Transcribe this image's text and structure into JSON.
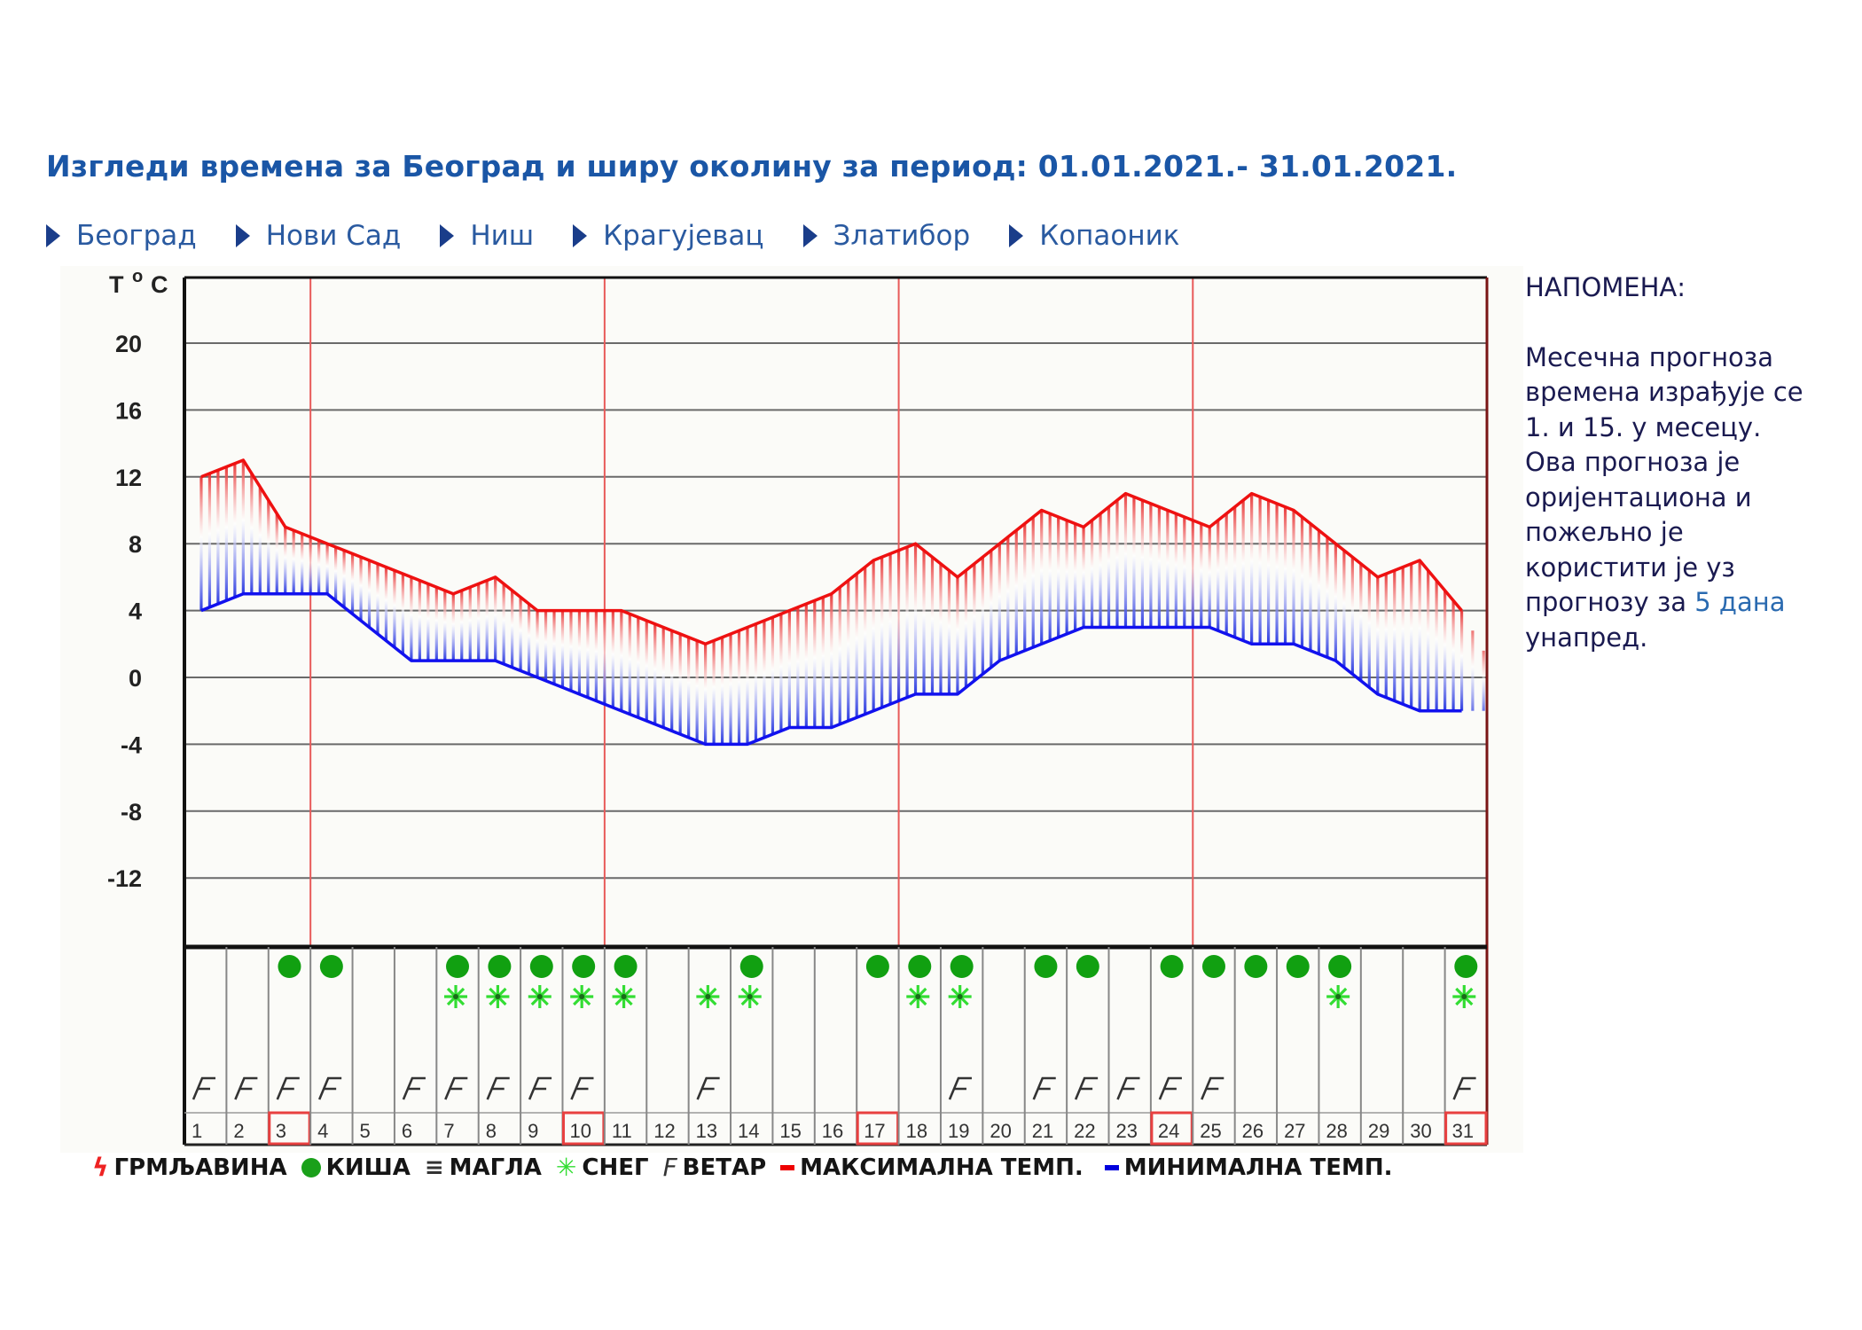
{
  "header": {
    "title": "Изгледи времена за Београд и ширу околину за период: 01.01.2021.- 31.01.2021."
  },
  "nav": {
    "items": [
      {
        "label": "Београд"
      },
      {
        "label": "Нови Сад"
      },
      {
        "label": "Ниш"
      },
      {
        "label": "Крагујевац"
      },
      {
        "label": "Златибор"
      },
      {
        "label": "Копаоник"
      }
    ]
  },
  "note": {
    "heading": "НАПОМЕНА:",
    "lines": [
      "Месечна прогноза",
      "времена израђује се",
      "1. и 15. у месецу.",
      "Ова прогноза је",
      "оријентациона и",
      "пожељно је",
      "користити је уз"
    ],
    "line_before_link": "прогнозу за ",
    "link_text": "5 дана",
    "last_line": "унапред."
  },
  "legend": {
    "thunder": "ГРМЉАВИНА",
    "rain": "КИША",
    "fog": "МАГЛА",
    "snow": "СНЕГ",
    "wind": "ВЕТАР",
    "max_temp": "МАКСИМАЛНА ТЕМП.",
    "min_temp": "МИНИМАЛНА ТЕМП."
  },
  "colors": {
    "max_line": "#ee1111",
    "min_line": "#1111ee",
    "week_separator": "#e85a5a",
    "rain": "#11a011",
    "snow": "#33dd33",
    "title": "#1a56a6"
  },
  "chart_data": {
    "type": "line",
    "title": "Изгледи времена за Београд и ширу околину за период: 01.01.2021.- 31.01.2021.",
    "ylabel": "T °C",
    "xlabel": "",
    "ylim": [
      -16,
      24
    ],
    "yticks": [
      20,
      16,
      12,
      8,
      4,
      0,
      -4,
      -8,
      -12
    ],
    "grid": true,
    "legend_position": "bottom",
    "x": [
      1,
      2,
      3,
      4,
      5,
      6,
      7,
      8,
      9,
      10,
      11,
      12,
      13,
      14,
      15,
      16,
      17,
      18,
      19,
      20,
      21,
      22,
      23,
      24,
      25,
      26,
      27,
      28,
      29,
      30,
      31
    ],
    "series": [
      {
        "name": "МАКСИМАЛНА ТЕМП.",
        "color": "#ee1111",
        "values": [
          12,
          13,
          9,
          8,
          7,
          6,
          5,
          6,
          4,
          4,
          4,
          3,
          2,
          3,
          4,
          5,
          7,
          8,
          6,
          8,
          10,
          9,
          11,
          10,
          9,
          11,
          10,
          8,
          6,
          7,
          4
        ]
      },
      {
        "name": "МИНИМАЛНА ТЕМП.",
        "color": "#1111ee",
        "values": [
          4,
          5,
          5,
          5,
          3,
          1,
          1,
          1,
          0,
          -1,
          -2,
          -3,
          -4,
          -4,
          -3,
          -3,
          -2,
          -1,
          -1,
          1,
          2,
          3,
          3,
          3,
          3,
          2,
          2,
          1,
          -1,
          -2,
          -2
        ]
      }
    ],
    "highlighted_days": [
      3,
      10,
      17,
      24,
      31
    ],
    "week_separators_after_day": [
      3,
      10,
      17,
      24
    ],
    "weather": {
      "rain": [
        3,
        4,
        7,
        8,
        9,
        10,
        11,
        14,
        17,
        18,
        19,
        21,
        22,
        24,
        25,
        26,
        27,
        28,
        31
      ],
      "snow": [
        7,
        8,
        9,
        10,
        11,
        13,
        14,
        18,
        19,
        28,
        31
      ],
      "wind": [
        1,
        2,
        3,
        4,
        6,
        7,
        8,
        9,
        10,
        13,
        19,
        21,
        22,
        23,
        24,
        25,
        31
      ],
      "fog": [],
      "thunder": []
    }
  }
}
